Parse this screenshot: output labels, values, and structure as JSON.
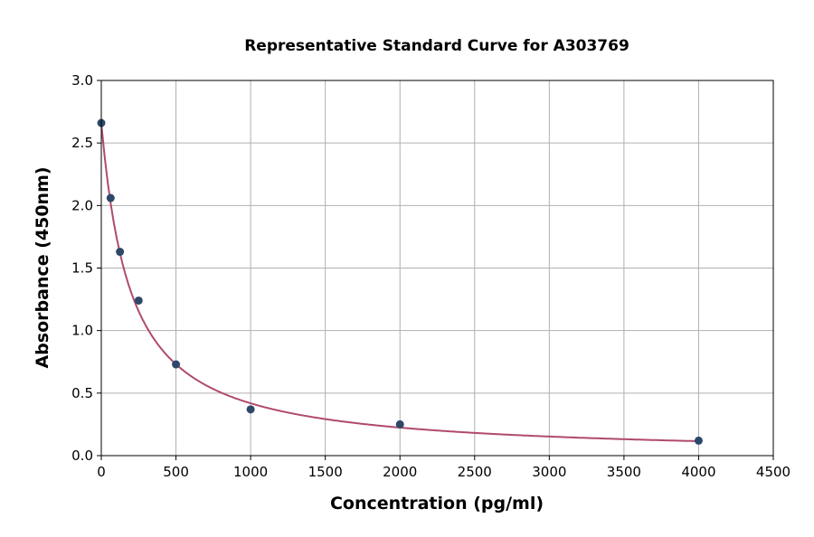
{
  "chart_data": {
    "type": "scatter",
    "title": "Representative Standard Curve for A303769",
    "xlabel": "Concentration (pg/ml)",
    "ylabel": "Absorbance (450nm)",
    "xlim": [
      0,
      4500
    ],
    "ylim": [
      0,
      3.0
    ],
    "xticks": [
      0,
      500,
      1000,
      1500,
      2000,
      2500,
      3000,
      3500,
      4000,
      4500
    ],
    "yticks": [
      "0.0",
      "0.5",
      "1.0",
      "1.5",
      "2.0",
      "2.5",
      "3.0"
    ],
    "grid": true,
    "points": [
      {
        "x": 0,
        "y": 2.66
      },
      {
        "x": 62.5,
        "y": 2.06
      },
      {
        "x": 125,
        "y": 1.63
      },
      {
        "x": 250,
        "y": 1.24
      },
      {
        "x": 500,
        "y": 0.73
      },
      {
        "x": 1000,
        "y": 0.37
      },
      {
        "x": 2000,
        "y": 0.25
      },
      {
        "x": 4000,
        "y": 0.12
      }
    ],
    "fit_curve": "smooth fitted curve through standards",
    "colors": {
      "points": "#2d4869",
      "curve": "#b04a6e",
      "grid": "#b0b0b0"
    }
  }
}
